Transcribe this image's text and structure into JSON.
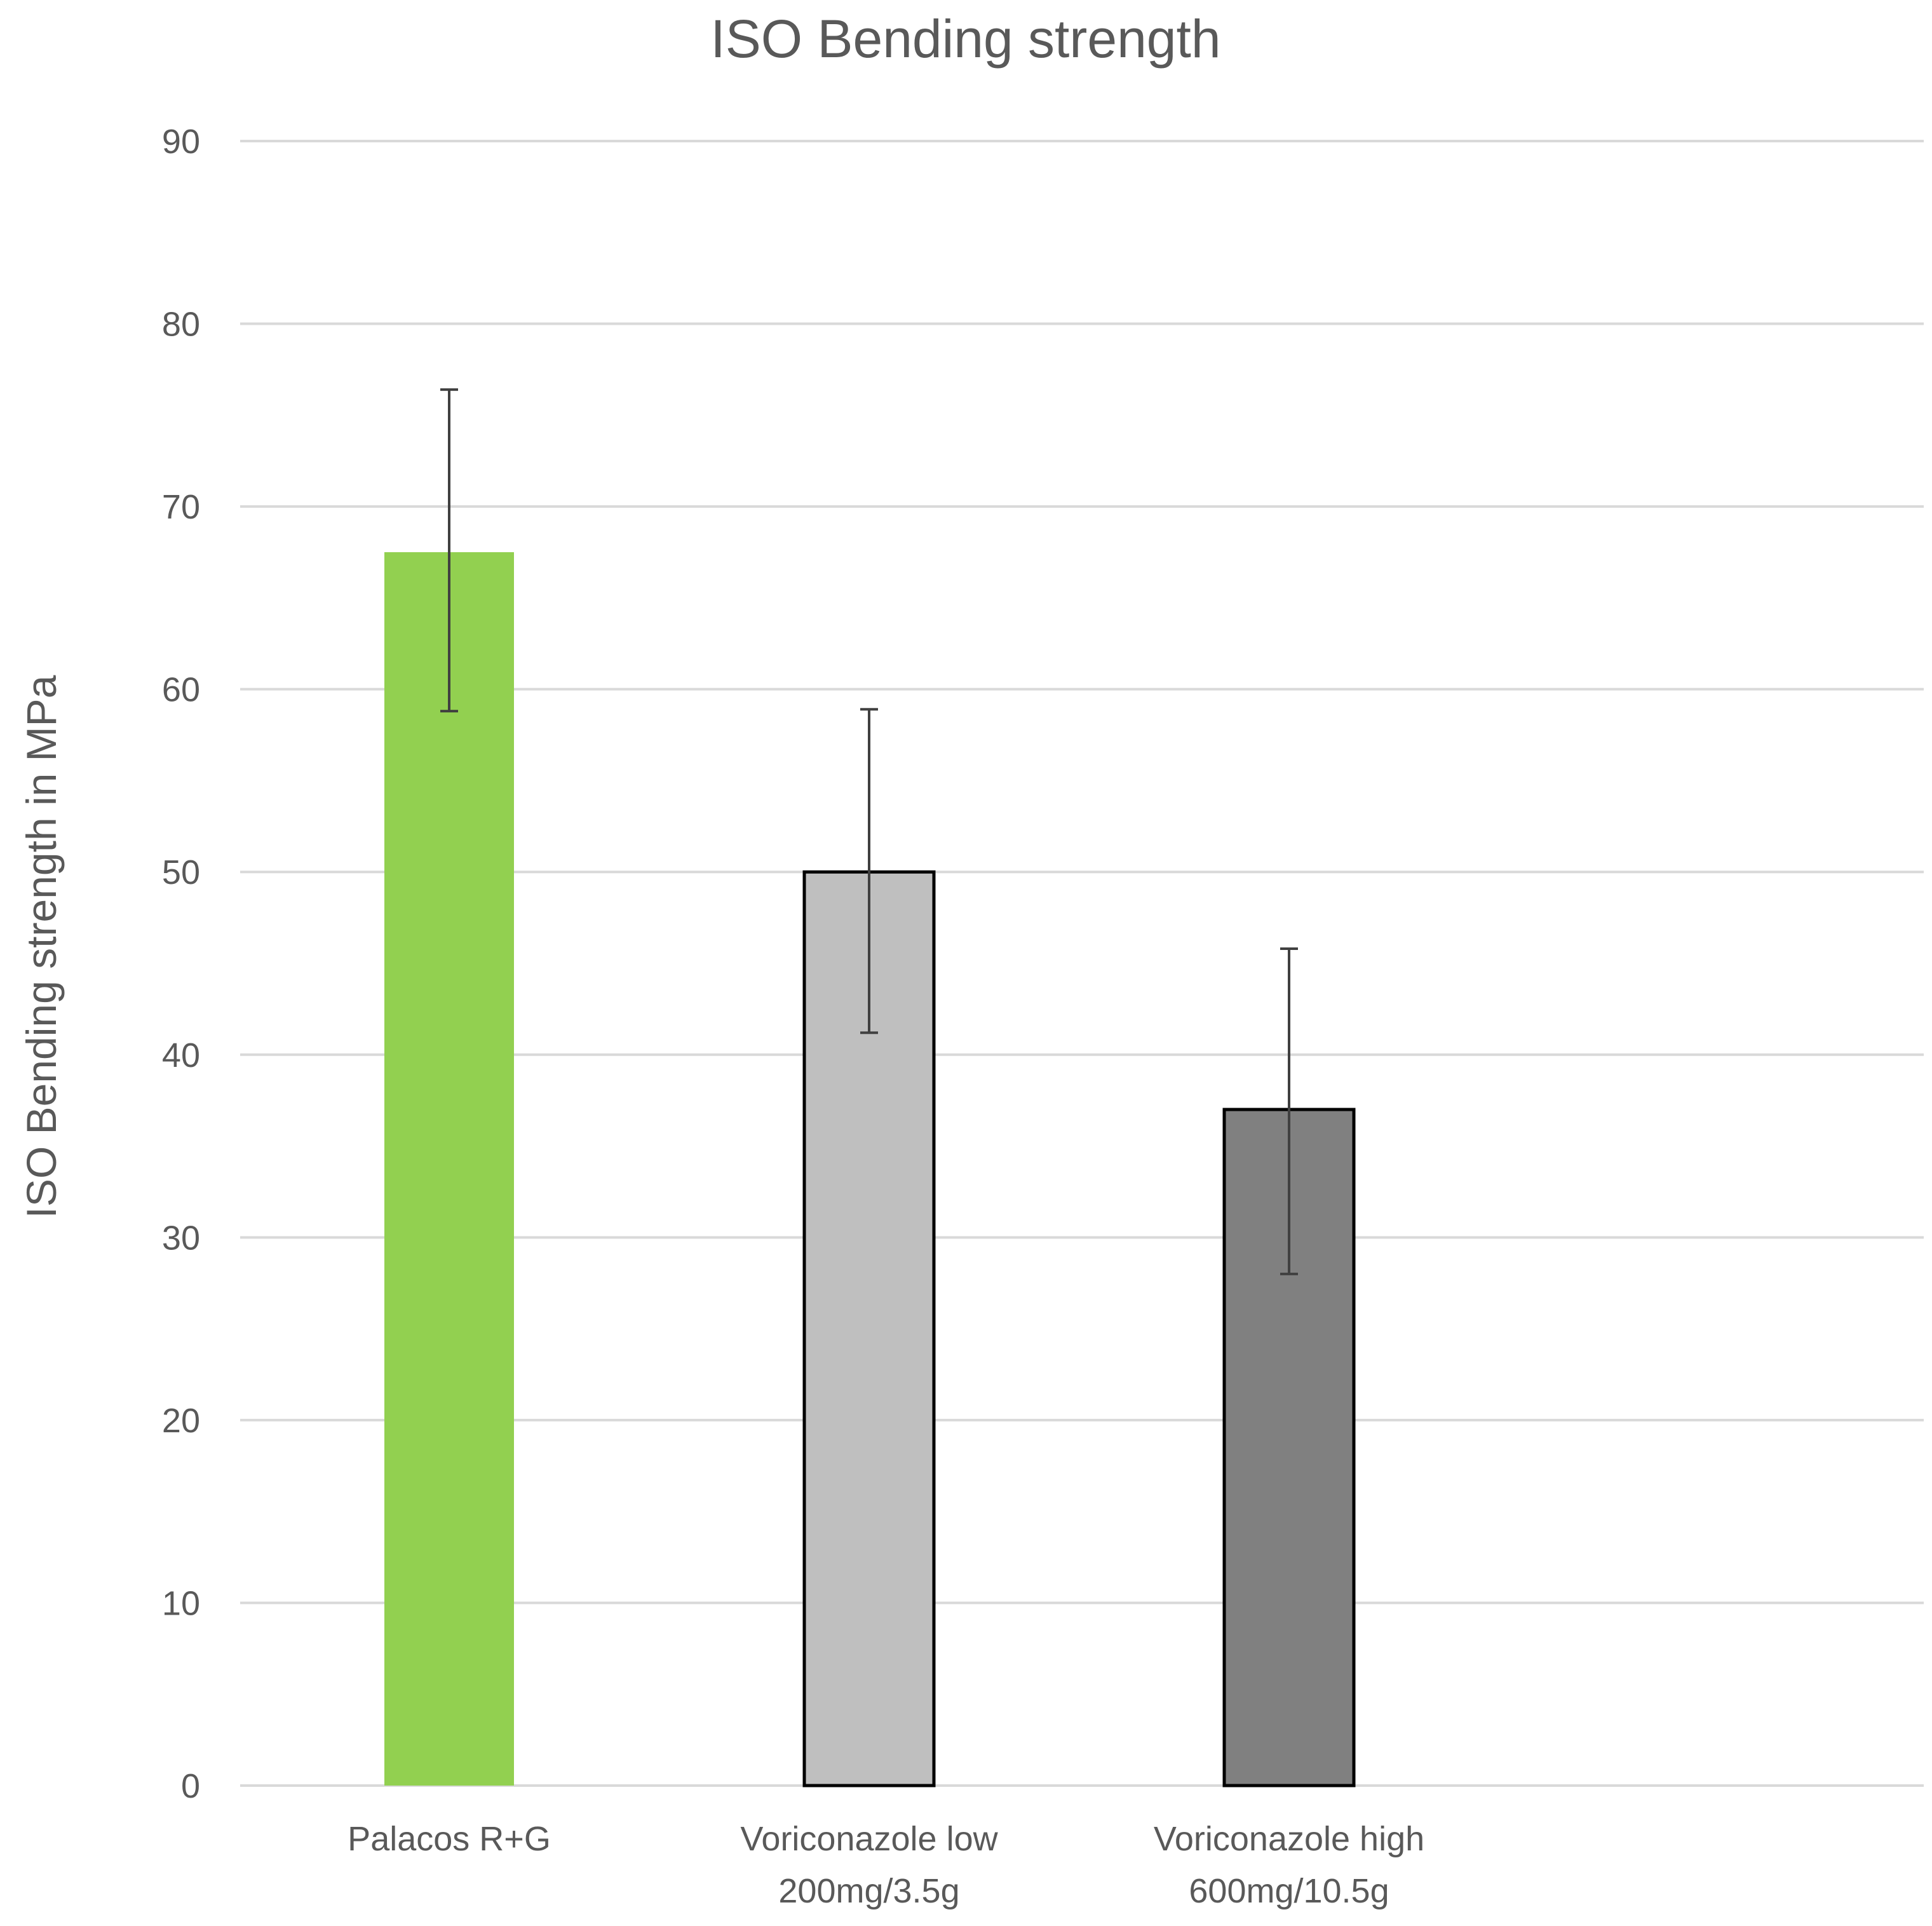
{
  "chart_data": {
    "type": "bar",
    "title": "ISO Bending strength",
    "xlabel": "",
    "ylabel": "ISO Bending  strength in MPa",
    "ylim": [
      0,
      90
    ],
    "yticks": [
      0,
      10,
      20,
      30,
      40,
      50,
      60,
      70,
      80,
      90
    ],
    "grid": true,
    "legend": "none",
    "categories": [
      [
        "Palacos R+G"
      ],
      [
        "Voriconazole low",
        "200mg/3.5g"
      ],
      [
        "Voriconazole high",
        "600mg/10.5g"
      ]
    ],
    "values": [
      67.5,
      50.0,
      37.0
    ],
    "error_low": [
      58.8,
      41.2,
      28.0
    ],
    "error_high": [
      76.4,
      58.9,
      45.8
    ],
    "colors": [
      "#92d050",
      "#bfbfbf",
      "#808080"
    ],
    "outlined": [
      false,
      true,
      true
    ]
  }
}
